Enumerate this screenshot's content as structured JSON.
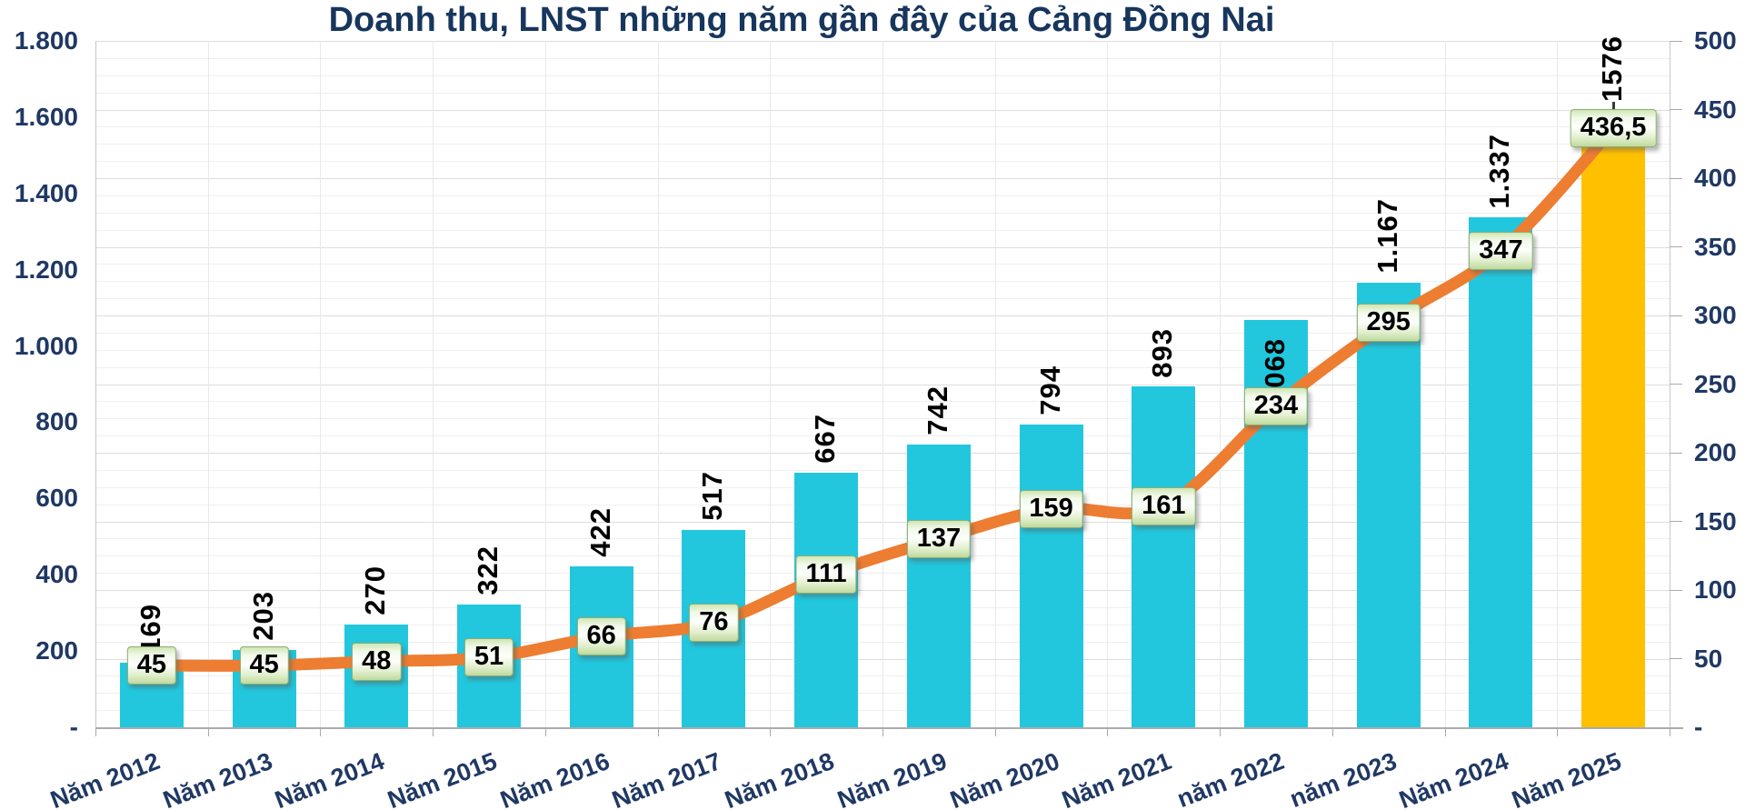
{
  "title": "Doanh thu, LNST những năm gần đây của Cảng Đồng Nai",
  "chart_data": {
    "type": "combo",
    "title": "Doanh thu, LNST những năm gần đây của Cảng Đồng Nai",
    "categories": [
      "Năm 2012",
      "Năm 2013",
      "Năm 2014",
      "Năm 2015",
      "Năm 2016",
      "Năm 2017",
      "Năm 2018",
      "Năm 2019",
      "Năm 2020",
      "Năm 2021",
      "năm 2022",
      "năm 2023",
      "Năm 2024",
      "Năm 2025"
    ],
    "series": [
      {
        "name": "Doanh thu",
        "type": "bar",
        "axis": "left",
        "values": [
          169,
          203,
          270,
          322,
          422,
          517,
          667,
          742,
          794,
          893,
          1068,
          1167,
          1337,
          1576
        ],
        "labels": [
          "169",
          "203",
          "270",
          "322",
          "422",
          "517",
          "667",
          "742",
          "794",
          "893",
          "1.068",
          "1.167",
          "1.337",
          "1576"
        ],
        "color": "#22C7DD",
        "highlight_index": 13,
        "highlight_color": "#FFC000"
      },
      {
        "name": "LNST",
        "type": "line",
        "axis": "right",
        "values": [
          45,
          45,
          48,
          51,
          66,
          76,
          111,
          137,
          159,
          161,
          234,
          295,
          347,
          436.5
        ],
        "labels": [
          "45",
          "45",
          "48",
          "51",
          "66",
          "76",
          "111",
          "137",
          "159",
          "161",
          "234",
          "295",
          "347",
          "436,5"
        ],
        "color": "#ED7D31"
      }
    ],
    "left_axis": {
      "min": 0,
      "max": 1800,
      "step": 200,
      "tick_values": [
        0,
        200,
        400,
        600,
        800,
        1000,
        1200,
        1400,
        1600,
        1800
      ],
      "tick_labels": [
        "-",
        "200",
        "400",
        "600",
        "800",
        "1.000",
        "1.200",
        "1.400",
        "1.600",
        "1.800"
      ]
    },
    "right_axis": {
      "min": 0,
      "max": 500,
      "step": 50,
      "tick_values": [
        0,
        50,
        100,
        150,
        200,
        250,
        300,
        350,
        400,
        450,
        500
      ],
      "tick_labels": [
        "-",
        "50",
        "100",
        "150",
        "200",
        "250",
        "300",
        "350",
        "400",
        "450",
        "500"
      ]
    },
    "grid": {
      "horizontal_minor_divisions": 40,
      "horizontal_major_every": 4,
      "vertical_category_lines": true
    },
    "legend": "none",
    "layout_hints": {
      "bar_label_dy": [
        0,
        0,
        0,
        0,
        0,
        0,
        0,
        0,
        0,
        0,
        113,
        0,
        0,
        -17
      ],
      "leader_tick_index": 13
    },
    "colors": {
      "axis_text": "#1F3864",
      "title_text": "#17365D",
      "grid_minor": "#EFEFEF",
      "grid_major": "#DDDDDD",
      "plot_border": "#C6C6C6",
      "x_axis_line": "#ABABAB",
      "bar_label_text": "#000000"
    }
  }
}
